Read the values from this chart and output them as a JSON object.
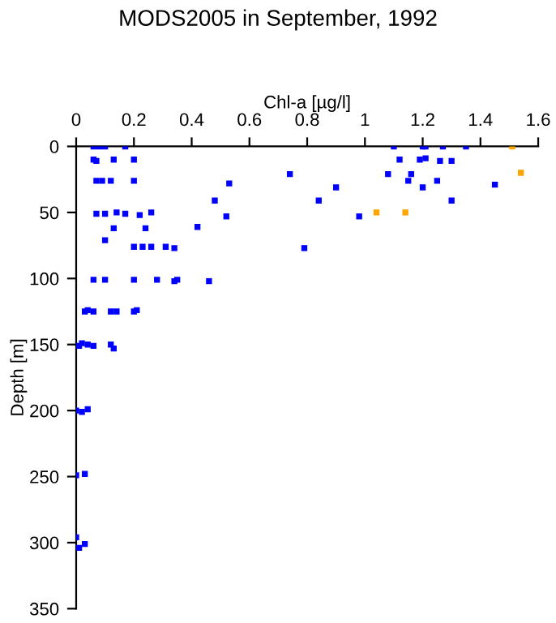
{
  "chart_data": {
    "type": "scatter",
    "title": "MODS2005 in September, 1992",
    "xlabel": "Chl-a [µg/l]",
    "ylabel": "Depth [m]",
    "xlim": [
      0,
      1.6
    ],
    "xticks": [
      0,
      0.2,
      0.4,
      0.6,
      0.8,
      1,
      1.2,
      1.4,
      1.6
    ],
    "ylim": [
      350,
      0
    ],
    "yticks": [
      0,
      50,
      100,
      150,
      200,
      250,
      300,
      350
    ],
    "marker": "square",
    "grid": false,
    "legend": false,
    "series": [
      {
        "color": "#0000ff",
        "x": [
          0.06,
          0.08,
          0.1,
          0.17,
          1.1,
          1.2,
          1.21,
          1.27,
          1.35,
          0.06,
          0.07,
          0.13,
          0.2,
          1.12,
          1.19,
          1.21,
          1.26,
          1.3,
          0.74,
          1.08,
          1.16,
          0.07,
          0.09,
          0.12,
          0.2,
          0.53,
          1.15,
          1.25,
          1.45,
          0.9,
          1.2,
          0.48,
          0.84,
          1.3,
          0.07,
          0.1,
          0.14,
          0.17,
          0.22,
          0.26,
          0.52,
          0.98,
          0.13,
          0.24,
          0.42,
          0.1,
          0.2,
          0.23,
          0.26,
          0.31,
          0.34,
          0.79,
          0.06,
          0.1,
          0.2,
          0.28,
          0.34,
          0.35,
          0.46,
          0.03,
          0.04,
          0.06,
          0.12,
          0.14,
          0.2,
          0.21,
          0.01,
          0.02,
          0.04,
          0.06,
          0.12,
          0.13,
          0.0,
          0.02,
          0.04,
          0.0,
          0.03,
          0.0,
          0.01,
          0.03
        ],
        "values": [
          0,
          0,
          0,
          0,
          0,
          0,
          0,
          0,
          0,
          10,
          11,
          10,
          10,
          10,
          10,
          9,
          11,
          11,
          21,
          21,
          21,
          26,
          26,
          26,
          26,
          28,
          26,
          26,
          29,
          31,
          31,
          41,
          41,
          41,
          51,
          51,
          50,
          51,
          52,
          50,
          53,
          53,
          62,
          62,
          61,
          71,
          76,
          76,
          76,
          76,
          77,
          77,
          101,
          101,
          101,
          101,
          102,
          101,
          102,
          125,
          124,
          125,
          125,
          125,
          125,
          124,
          151,
          149,
          150,
          151,
          150,
          153,
          200,
          201,
          199,
          249,
          248,
          296,
          304,
          301
        ]
      },
      {
        "color": "#ffa500",
        "x": [
          1.51,
          1.54,
          1.04,
          1.14
        ],
        "values": [
          0,
          20,
          50,
          50
        ]
      }
    ]
  }
}
